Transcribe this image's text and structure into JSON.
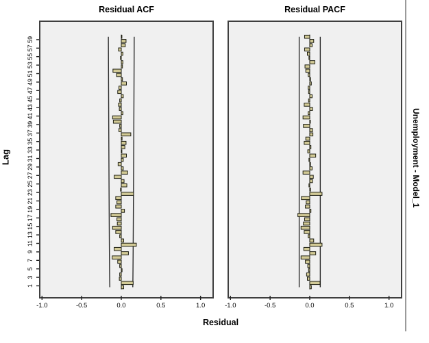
{
  "titles": {
    "acf": "Residual ACF",
    "pacf": "Residual PACF"
  },
  "axis": {
    "y_label": "Lag",
    "x_label": "Residual",
    "right_label": "Unemployment - Model_1",
    "x_ticks": [
      "-1.0",
      "-0.5",
      "0.0",
      "0.5",
      "1.0"
    ],
    "x_tick_values": [
      -1.0,
      -0.5,
      0.0,
      0.5,
      1.0
    ],
    "lag_tick_labels": [
      "1",
      "3",
      "5",
      "7",
      "9",
      "11",
      "13",
      "15",
      "17",
      "19",
      "21",
      "23",
      "25",
      "27",
      "29",
      "31",
      "33",
      "35",
      "37",
      "39",
      "41",
      "43",
      "45",
      "47",
      "49",
      "51",
      "53",
      "55",
      "57",
      "59"
    ]
  },
  "colors": {
    "bar_fill": "#d2ca96",
    "bar_stroke": "#1c1c10",
    "panel_bg": "#f0f0f0",
    "panel_border": "#3f3f3f",
    "ci_line": "#2e2e2e",
    "zero_line": "#555555",
    "divider": "#9a9a9a",
    "text": "#000000"
  },
  "chart_data": [
    {
      "type": "bar",
      "orientation": "horizontal",
      "title": "Residual ACF",
      "xlabel": "Residual",
      "ylabel": "Lag",
      "xlim": [
        -1.02,
        1.15
      ],
      "max_lag": 60,
      "confidence_limit_at_lag1": 0.145,
      "confidence_limit_at_max_lag": 0.163,
      "zero_line": "dashed",
      "values": [
        0.03,
        0.15,
        -0.025,
        -0.02,
        0.01,
        -0.02,
        -0.045,
        -0.115,
        0.09,
        -0.09,
        0.19,
        0.03,
        -0.02,
        -0.07,
        -0.11,
        -0.05,
        -0.055,
        -0.13,
        0.04,
        -0.07,
        -0.055,
        -0.07,
        0.155,
        -0.01,
        0.07,
        0.035,
        -0.09,
        0.08,
        0.025,
        -0.04,
        0.025,
        0.065,
        0.005,
        0.045,
        0.06,
        0.01,
        0.12,
        -0.03,
        -0.02,
        -0.1,
        -0.11,
        0.02,
        -0.025,
        -0.035,
        -0.02,
        0.025,
        -0.045,
        -0.03,
        0.065,
        0.015,
        -0.06,
        -0.105,
        0.015,
        0.02,
        -0.01,
        0.02,
        -0.035,
        0.05,
        0.06,
        0.005
      ]
    },
    {
      "type": "bar",
      "orientation": "horizontal",
      "title": "Residual PACF",
      "xlabel": "Residual",
      "ylabel": "Lag",
      "xlim": [
        -1.02,
        1.15
      ],
      "max_lag": 60,
      "confidence_limit_at_lag1": 0.133,
      "confidence_limit_at_max_lag": 0.133,
      "zero_line": "dashed",
      "values": [
        0.02,
        0.13,
        -0.03,
        -0.04,
        -0.015,
        -0.025,
        -0.055,
        -0.11,
        0.075,
        -0.075,
        0.155,
        0.05,
        -0.02,
        -0.07,
        -0.11,
        -0.08,
        -0.065,
        -0.15,
        0.015,
        -0.055,
        -0.045,
        -0.105,
        0.155,
        0.01,
        -0.01,
        0.035,
        0.045,
        -0.085,
        0.03,
        0.01,
        -0.01,
        0.075,
        -0.025,
        0.015,
        -0.07,
        -0.05,
        0.04,
        0.035,
        -0.08,
        0.005,
        -0.085,
        -0.02,
        0.035,
        -0.07,
        -0.015,
        0.03,
        -0.015,
        -0.02,
        0.02,
        0.01,
        -0.02,
        -0.05,
        -0.06,
        0.065,
        -0.01,
        -0.03,
        -0.065,
        0.03,
        0.05,
        -0.065
      ]
    }
  ]
}
